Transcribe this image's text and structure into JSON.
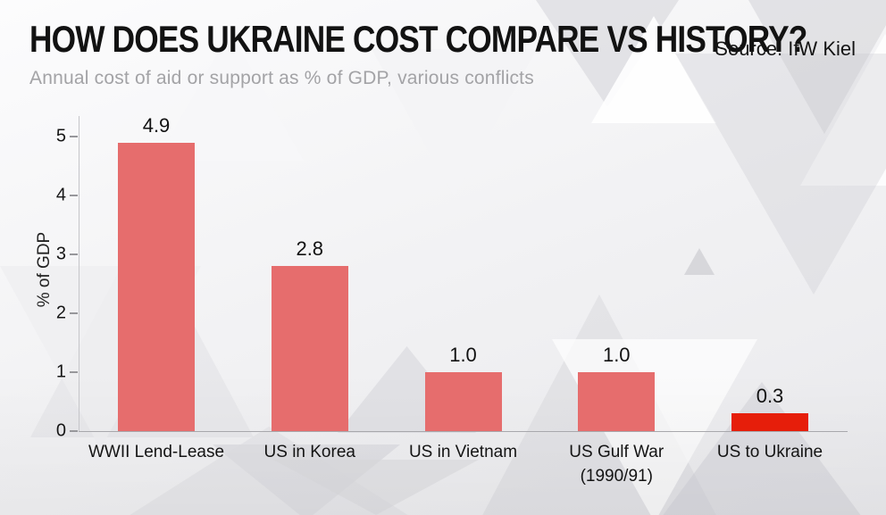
{
  "chart_data": {
    "type": "bar",
    "title": "HOW DOES UKRAINE COST COMPARE VS HISTORY?",
    "subtitle": "Annual cost of aid or support as % of GDP, various conflicts",
    "source": "Source: IfW Kiel",
    "ylabel": "% of GDP",
    "xlabel": "",
    "ylim": [
      0,
      5.3
    ],
    "yticks": [
      0,
      1,
      2,
      3,
      4,
      5
    ],
    "grid": false,
    "legend": "none",
    "categories": [
      "WWII Lend-Lease",
      "US in Korea",
      "US in Vietnam",
      "US Gulf War (1990/91)",
      "US to Ukraine"
    ],
    "category_lines": [
      [
        "WWII Lend-Lease"
      ],
      [
        "US in Korea"
      ],
      [
        "US in Vietnam"
      ],
      [
        "US Gulf War",
        "(1990/91)"
      ],
      [
        "US to Ukraine"
      ]
    ],
    "values": [
      4.9,
      2.8,
      1.0,
      1.0,
      0.3
    ],
    "value_labels": [
      "4.9",
      "2.8",
      "1.0",
      "1.0",
      "0.3"
    ],
    "bar_colors": [
      "#e66d6d",
      "#e66d6d",
      "#e66d6d",
      "#e66d6d",
      "#e61e0a"
    ],
    "highlight_index": 4,
    "colors": {
      "bar_default": "#e66d6d",
      "bar_highlight": "#e61e0a",
      "title_text": "#121212",
      "subtitle_text": "#a3a3a6",
      "axis_line": "#c5c5c9",
      "baseline": "#a8a8ac",
      "tick_text": "#161616"
    }
  }
}
